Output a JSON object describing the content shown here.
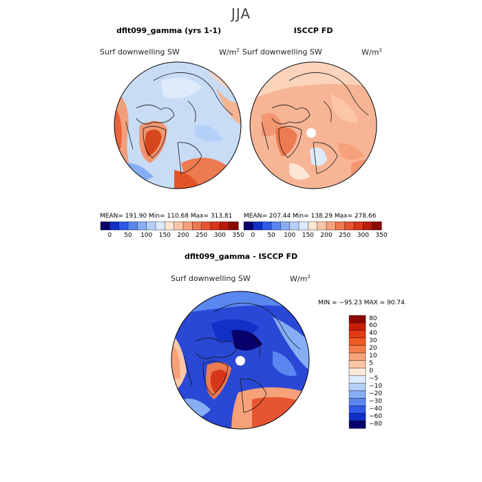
{
  "figure": {
    "season": "JJA"
  },
  "panels": [
    {
      "title": "dflt099_gamma (yrs 1-1)",
      "field_label": "Surf downwelling SW",
      "units_base": "W/m",
      "units_exp": "2",
      "stats": "MEAN= 191.90  Min= 110.68  Max= 313.81"
    },
    {
      "title": "ISCCP FD",
      "field_label": "Surf downwelling SW",
      "units_base": "W/m",
      "units_exp": "2",
      "stats": "MEAN= 207.44  Min= 138.29  Max= 278.66"
    },
    {
      "title": "dflt099_gamma - ISCCP FD",
      "field_label": "Surf downwelling SW",
      "units_base": "W/m",
      "units_exp": "2",
      "stats": "MIN = −95.23 MAX =  90.74"
    }
  ],
  "colorbar_abs": {
    "ticks": [
      "0",
      "50",
      "100",
      "150",
      "200",
      "250",
      "300",
      "350"
    ],
    "colors": [
      "#08006b",
      "#1030c8",
      "#2e5ae8",
      "#5a86f0",
      "#86aef5",
      "#b4d0f8",
      "#dceafc",
      "#fde6d4",
      "#fcc7a8",
      "#f5a27a",
      "#ee7a50",
      "#e65530",
      "#d8361a",
      "#b81d0c",
      "#8a0a00"
    ]
  },
  "colorbar_diff": {
    "labels": [
      "80",
      "60",
      "40",
      "30",
      "20",
      "10",
      "5",
      "0",
      "−5",
      "−10",
      "−20",
      "−30",
      "−40",
      "−60",
      "−80"
    ],
    "colors": [
      "#8a0a00",
      "#c81e08",
      "#e23a14",
      "#ef5a22",
      "#f47c48",
      "#f6a27a",
      "#f9c6a6",
      "#fde8d8",
      "#dceafc",
      "#b4d0f8",
      "#86aef5",
      "#5a86f0",
      "#2e5ae8",
      "#1030c8",
      "#08006b"
    ]
  },
  "maps": {
    "model_base": "#c8dcf6",
    "obs_base": "#f7b596",
    "diff_base": "#2a48d6",
    "pole_hole": "#ffffff"
  }
}
